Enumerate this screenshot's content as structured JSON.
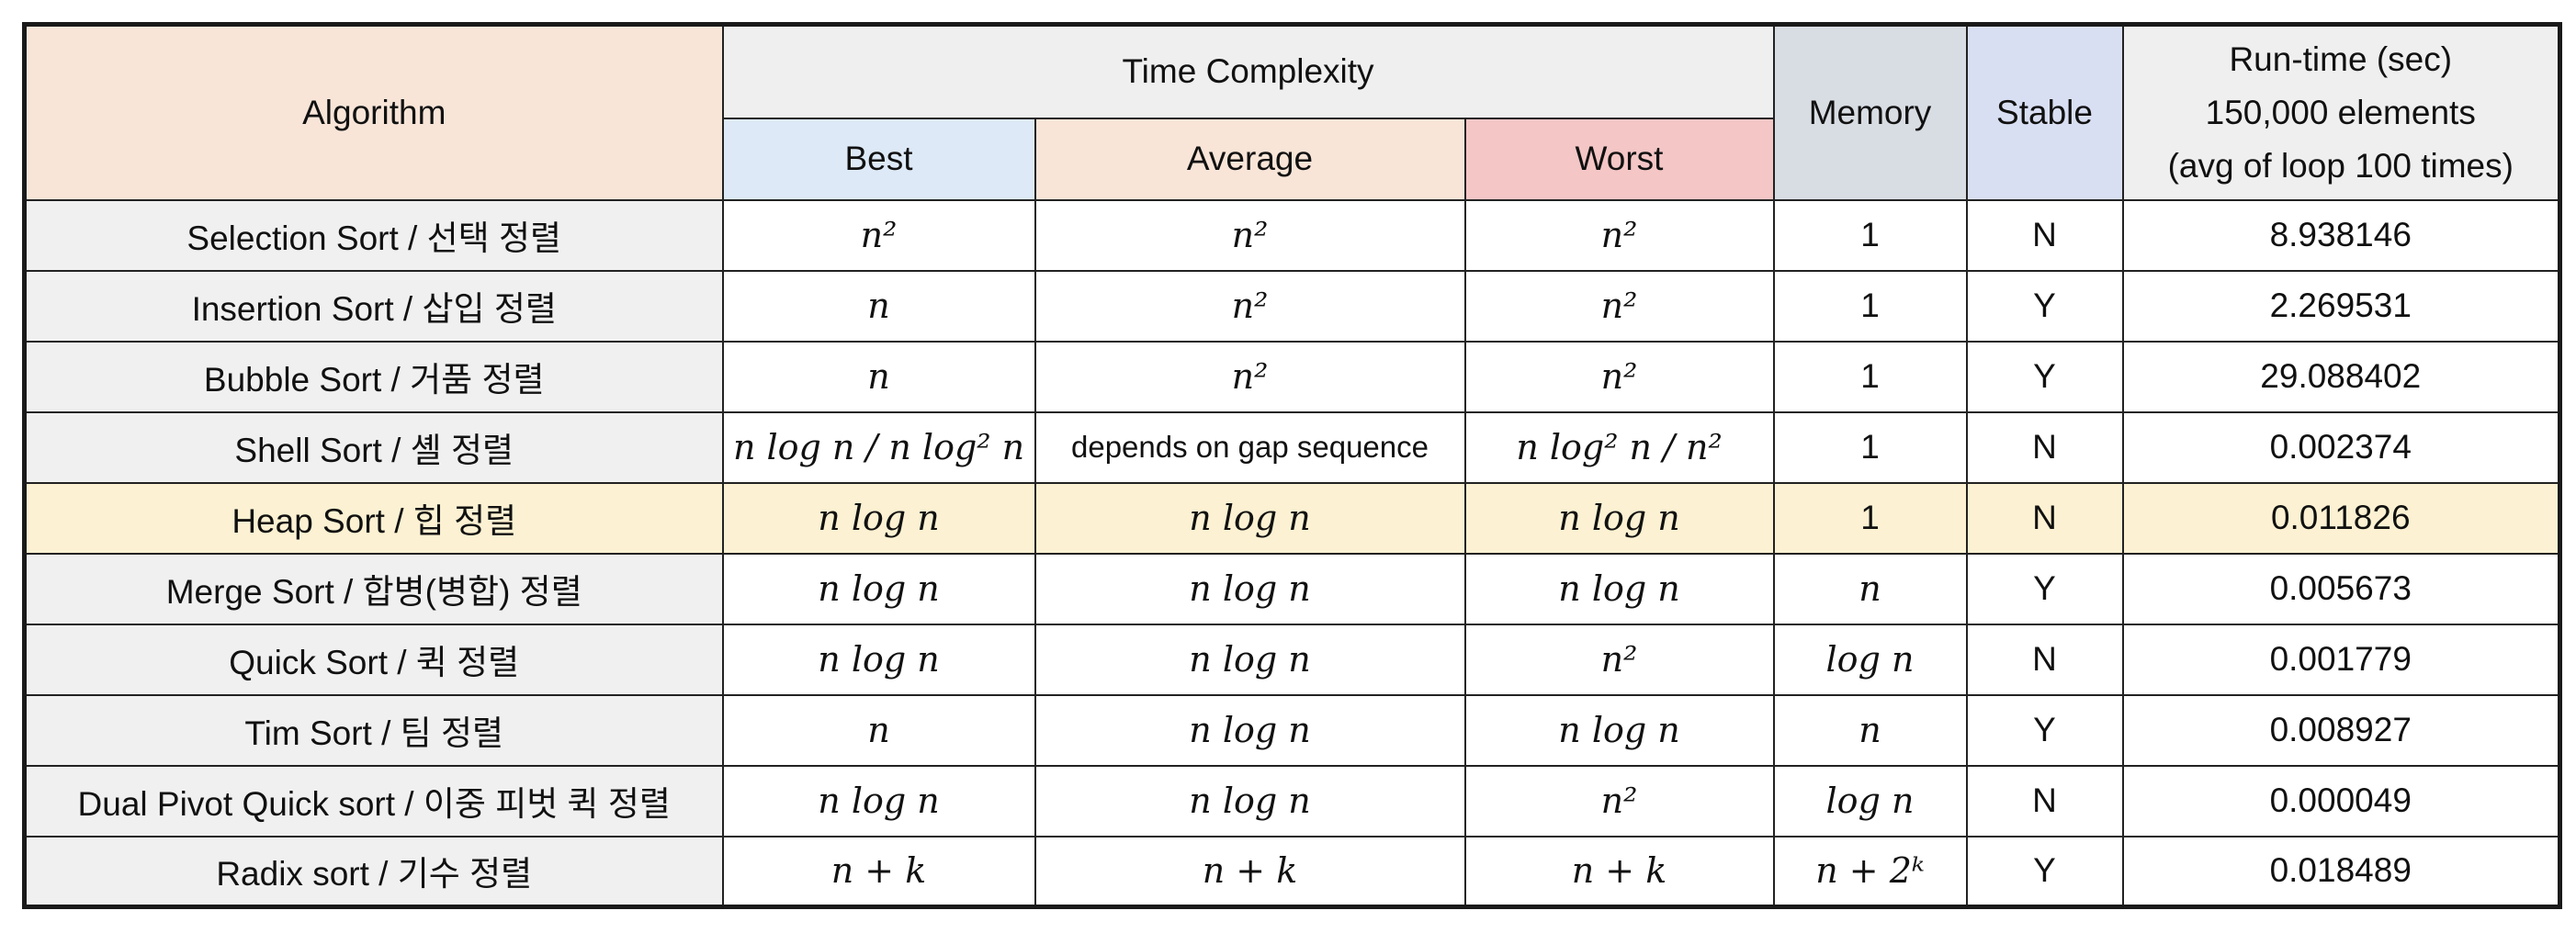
{
  "header": {
    "algorithm": "Algorithm",
    "time_complexity": "Time Complexity",
    "best": "Best",
    "average": "Average",
    "worst": "Worst",
    "memory": "Memory",
    "stable": "Stable",
    "runtime_line1": "Run-time (sec)",
    "runtime_line2": "150,000 elements",
    "runtime_line3": "(avg of loop 100 times)"
  },
  "rows": [
    {
      "algorithm": "Selection Sort / 선택 정렬",
      "best": "n²",
      "average": "n²",
      "worst": "n²",
      "memory": "1",
      "stable": "N",
      "runtime": "8.938146"
    },
    {
      "algorithm": "Insertion Sort / 삽입 정렬",
      "best": "n",
      "average": "n²",
      "worst": "n²",
      "memory": "1",
      "stable": "Y",
      "runtime": "2.269531"
    },
    {
      "algorithm": "Bubble Sort / 거품 정렬",
      "best": "n",
      "average": "n²",
      "worst": "n²",
      "memory": "1",
      "stable": "Y",
      "runtime": "29.088402"
    },
    {
      "algorithm": "Shell Sort / 셸 정렬",
      "best": "n log n / n log² n",
      "average": "depends on gap sequence",
      "worst": "n log² n  / n²",
      "memory": "1",
      "stable": "N",
      "runtime": "0.002374"
    },
    {
      "algorithm": "Heap Sort / 힙 정렬",
      "best": "n log n",
      "average": "n log n",
      "worst": "n log n",
      "memory": "1",
      "stable": "N",
      "runtime": "0.011826"
    },
    {
      "algorithm": "Merge Sort / 합병(병합) 정렬",
      "best": "n log n",
      "average": "n log n",
      "worst": "n log n",
      "memory": "n",
      "stable": "Y",
      "runtime": "0.005673"
    },
    {
      "algorithm": "Quick Sort / 퀵 정렬",
      "best": "n log n",
      "average": "n log n",
      "worst": "n²",
      "memory": "log n",
      "stable": "N",
      "runtime": "0.001779"
    },
    {
      "algorithm": "Tim Sort / 팀 정렬",
      "best": "n",
      "average": "n log n",
      "worst": "n log n",
      "memory": "n",
      "stable": "Y",
      "runtime": "0.008927"
    },
    {
      "algorithm": "Dual Pivot Quick sort / 이중 피벗 퀵 정렬",
      "best": "n log n",
      "average": "n log n",
      "worst": "n²",
      "memory": "log n",
      "stable": "N",
      "runtime": "0.000049"
    },
    {
      "algorithm": "Radix sort / 기수 정렬",
      "best": "n + k",
      "average": "n + k",
      "worst": "n + k",
      "memory": "n + 2ᵏ",
      "stable": "Y",
      "runtime": "0.018489"
    }
  ],
  "highlighted_row": "Heap Sort / 힙 정렬",
  "colors": {
    "algorithm_header": "#f8e5d8",
    "best_header": "#dde9f6",
    "average_header": "#f8e5d8",
    "worst_header": "#f4c6c6",
    "memory_header": "#d8dce3",
    "stable_header": "#d9dff3",
    "highlight_row": "#fcf1d2"
  }
}
